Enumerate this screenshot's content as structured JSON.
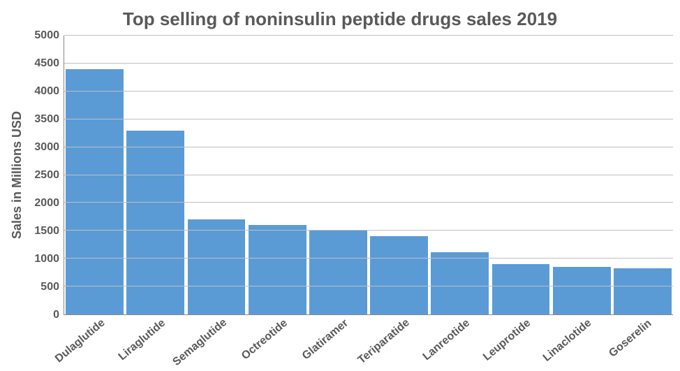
{
  "chart": {
    "type": "bar",
    "title": "Top selling of noninsulin peptide drugs sales 2019",
    "title_fontsize": 26,
    "title_color": "#595959",
    "ylabel": "Sales in Millions USD",
    "ylabel_fontsize": 18,
    "ylabel_color": "#595959",
    "categories": [
      "Dulaglutide",
      "Liraglutide",
      "Semaglutide",
      "Octreotide",
      "Glatiramer",
      "Teriparatide",
      "Lanreotide",
      "Leuprotide",
      "Linaclotide",
      "Goserelin"
    ],
    "values": [
      4400,
      3300,
      1700,
      1600,
      1520,
      1400,
      1120,
      900,
      850,
      830
    ],
    "bar_color": "#5b9bd5",
    "bar_width": 0.95,
    "ylim": [
      0,
      5000
    ],
    "ytick_step": 500,
    "yticks": [
      0,
      500,
      1000,
      1500,
      2000,
      2500,
      3000,
      3500,
      4000,
      4500,
      5000
    ],
    "tick_fontsize": 16,
    "tick_color": "#595959",
    "xlabel_fontsize": 16,
    "xlabel_rotation": -40,
    "background_color": "#ffffff",
    "grid_color": "#bfbfbf",
    "axis_color": "#888888",
    "grid_horizontal": true
  }
}
